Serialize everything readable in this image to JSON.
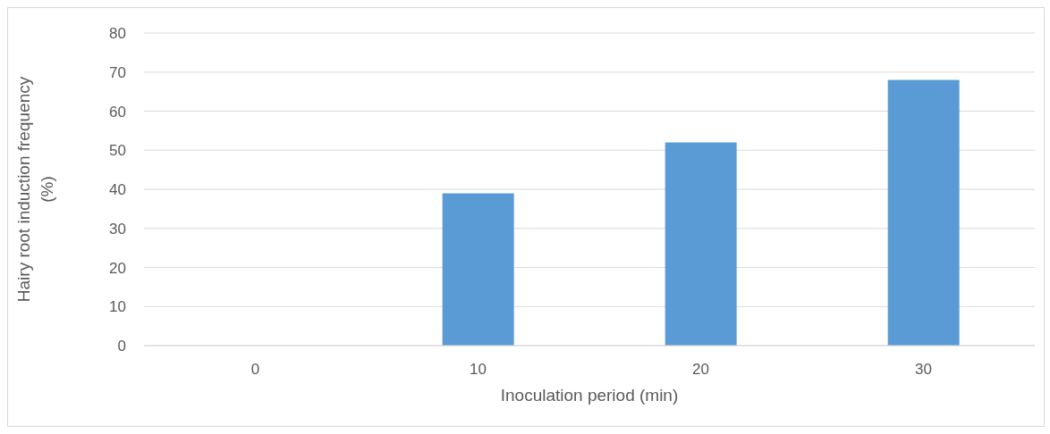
{
  "chart_data": {
    "type": "bar",
    "xlabel": "Inoculation period (min)",
    "ylabel": "Hairy root induction frequency (%)",
    "categories": [
      "0",
      "10",
      "20",
      "30"
    ],
    "values": [
      0,
      39,
      52,
      68
    ],
    "color": "#5b9bd5",
    "ylim": [
      0,
      80
    ],
    "yticks": [
      0,
      10,
      20,
      30,
      40,
      50,
      60,
      70,
      80
    ],
    "grid": "y"
  }
}
